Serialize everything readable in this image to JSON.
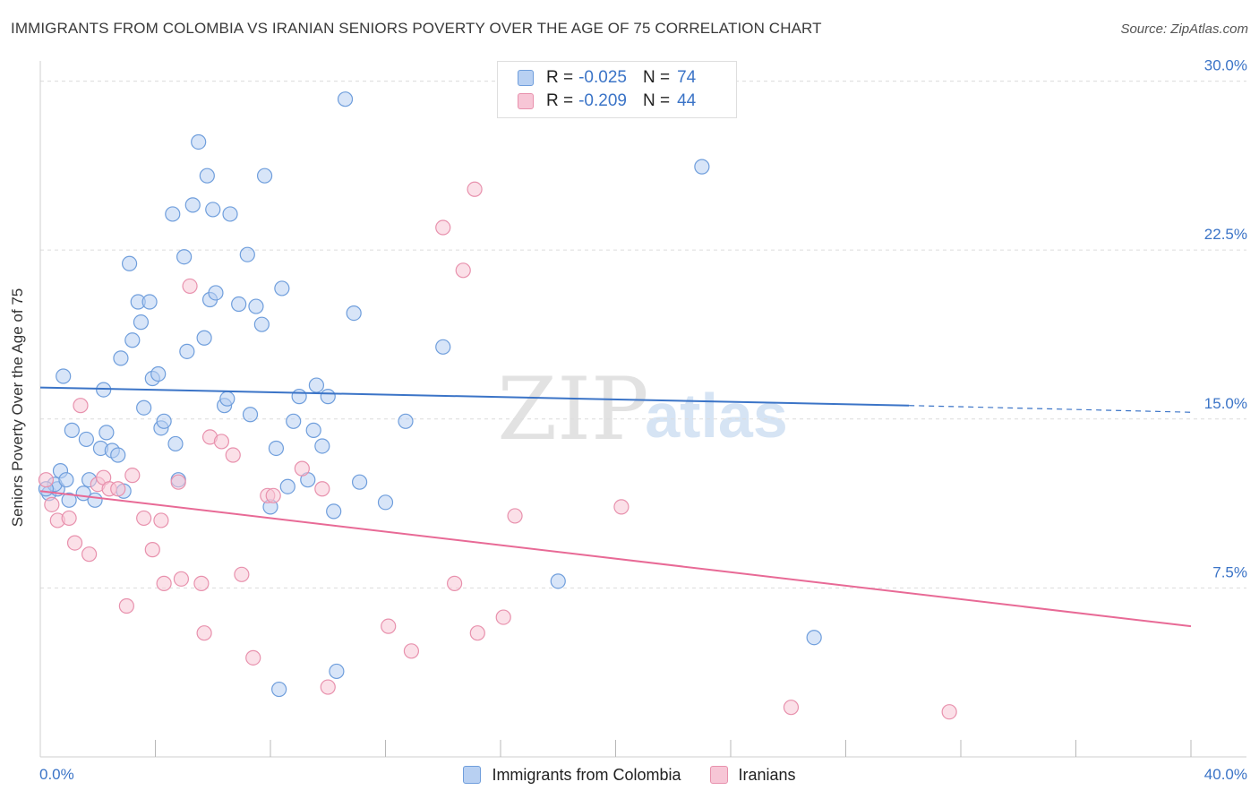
{
  "title": "IMMIGRANTS FROM COLOMBIA VS IRANIAN SENIORS POVERTY OVER THE AGE OF 75 CORRELATION CHART",
  "source": "Source: ZipAtlas.com",
  "watermark": {
    "zip": "ZIP",
    "atlas": "atlas"
  },
  "stats": [
    {
      "r_label": "R =",
      "r_value": "-0.025",
      "n_label": "N =",
      "n_value": "74",
      "swatch_fill": "#b8d0f2",
      "swatch_border": "#6f9edc"
    },
    {
      "r_label": "R =",
      "r_value": "-0.209",
      "n_label": "N =",
      "n_value": "44",
      "swatch_fill": "#f7c6d6",
      "swatch_border": "#e891ad"
    }
  ],
  "legend": [
    {
      "label": "Immigrants from Colombia",
      "fill": "#b8d0f2",
      "border": "#6f9edc"
    },
    {
      "label": "Iranians",
      "fill": "#f7c6d6",
      "border": "#e891ad"
    }
  ],
  "chart_data": {
    "type": "scatter",
    "ylabel": "Seniors Poverty Over the Age of 75",
    "xlabel": "",
    "xlim": [
      0,
      40
    ],
    "ylim": [
      0,
      30.5
    ],
    "x_tick_labels": [
      {
        "value": 0,
        "label": "0.0%"
      },
      {
        "value": 40,
        "label": "40.0%"
      }
    ],
    "y_tick_labels": [
      {
        "value": 7.5,
        "label": "7.5%"
      },
      {
        "value": 15,
        "label": "15.0%"
      },
      {
        "value": 22.5,
        "label": "22.5%"
      },
      {
        "value": 30,
        "label": "30.0%"
      }
    ],
    "x_minor_ticks": [
      4,
      8,
      12,
      16,
      20,
      24,
      28,
      32,
      36,
      40
    ],
    "grid": true,
    "colors": {
      "blue": "#3b74c7",
      "pink": "#e86a96",
      "tick_label": "#3b74c7"
    },
    "series": [
      {
        "name": "Immigrants from Colombia",
        "color": "#6f9edc",
        "fill": "#b8d0f2",
        "trend": {
          "x0": 0,
          "y0": 16.4,
          "x1": 30.2,
          "y1": 15.6,
          "dash_to_x": 40,
          "dash_to_y": 15.3
        },
        "points": [
          [
            0.3,
            11.7
          ],
          [
            0.6,
            11.9
          ],
          [
            0.5,
            12.1
          ],
          [
            0.7,
            12.7
          ],
          [
            0.9,
            12.3
          ],
          [
            1.0,
            11.4
          ],
          [
            0.8,
            16.9
          ],
          [
            1.1,
            14.5
          ],
          [
            1.6,
            14.1
          ],
          [
            1.5,
            11.7
          ],
          [
            1.7,
            12.3
          ],
          [
            1.9,
            11.4
          ],
          [
            2.1,
            13.7
          ],
          [
            2.2,
            16.3
          ],
          [
            2.3,
            14.4
          ],
          [
            2.5,
            13.6
          ],
          [
            2.7,
            13.4
          ],
          [
            2.9,
            11.8
          ],
          [
            2.8,
            17.7
          ],
          [
            3.1,
            21.9
          ],
          [
            3.2,
            18.5
          ],
          [
            3.4,
            20.2
          ],
          [
            3.5,
            19.3
          ],
          [
            3.6,
            15.5
          ],
          [
            3.8,
            20.2
          ],
          [
            3.9,
            16.8
          ],
          [
            4.1,
            17.0
          ],
          [
            4.2,
            14.6
          ],
          [
            4.3,
            14.9
          ],
          [
            4.6,
            24.1
          ],
          [
            4.7,
            13.9
          ],
          [
            4.8,
            12.3
          ],
          [
            5.0,
            22.2
          ],
          [
            5.1,
            18.0
          ],
          [
            5.3,
            24.5
          ],
          [
            5.5,
            27.3
          ],
          [
            5.7,
            18.6
          ],
          [
            5.8,
            25.8
          ],
          [
            5.9,
            20.3
          ],
          [
            6.0,
            24.3
          ],
          [
            6.1,
            20.6
          ],
          [
            6.4,
            15.6
          ],
          [
            6.5,
            15.9
          ],
          [
            6.6,
            24.1
          ],
          [
            6.9,
            20.1
          ],
          [
            7.2,
            22.3
          ],
          [
            7.3,
            15.2
          ],
          [
            7.5,
            20.0
          ],
          [
            7.7,
            19.2
          ],
          [
            7.8,
            25.8
          ],
          [
            8.0,
            11.1
          ],
          [
            8.2,
            13.7
          ],
          [
            8.3,
            3.0
          ],
          [
            8.4,
            20.8
          ],
          [
            8.6,
            12.0
          ],
          [
            8.8,
            14.9
          ],
          [
            9.0,
            16.0
          ],
          [
            9.3,
            12.3
          ],
          [
            9.5,
            14.5
          ],
          [
            9.6,
            16.5
          ],
          [
            9.8,
            13.8
          ],
          [
            10.0,
            16.0
          ],
          [
            10.2,
            10.9
          ],
          [
            10.3,
            3.8
          ],
          [
            10.6,
            29.2
          ],
          [
            10.9,
            19.7
          ],
          [
            11.1,
            12.2
          ],
          [
            12.0,
            11.3
          ],
          [
            12.7,
            14.9
          ],
          [
            14.0,
            18.2
          ],
          [
            18.0,
            7.8
          ],
          [
            23.0,
            26.2
          ],
          [
            26.9,
            5.3
          ],
          [
            0.2,
            11.9
          ]
        ]
      },
      {
        "name": "Iranians",
        "color": "#e891ad",
        "fill": "#f7c6d6",
        "trend": {
          "x0": 0,
          "y0": 11.8,
          "x1": 40,
          "y1": 5.8
        },
        "points": [
          [
            0.2,
            12.3
          ],
          [
            0.4,
            11.2
          ],
          [
            0.6,
            10.5
          ],
          [
            1.0,
            10.6
          ],
          [
            1.2,
            9.5
          ],
          [
            1.4,
            15.6
          ],
          [
            1.7,
            9.0
          ],
          [
            2.0,
            12.1
          ],
          [
            2.2,
            12.4
          ],
          [
            2.4,
            11.9
          ],
          [
            2.7,
            11.9
          ],
          [
            3.0,
            6.7
          ],
          [
            3.2,
            12.5
          ],
          [
            3.6,
            10.6
          ],
          [
            3.9,
            9.2
          ],
          [
            4.3,
            7.7
          ],
          [
            4.2,
            10.5
          ],
          [
            4.8,
            12.2
          ],
          [
            4.9,
            7.9
          ],
          [
            5.2,
            20.9
          ],
          [
            5.6,
            7.7
          ],
          [
            5.7,
            5.5
          ],
          [
            5.9,
            14.2
          ],
          [
            6.3,
            14.0
          ],
          [
            6.7,
            13.4
          ],
          [
            7.0,
            8.1
          ],
          [
            7.4,
            4.4
          ],
          [
            7.9,
            11.6
          ],
          [
            8.1,
            11.6
          ],
          [
            9.1,
            12.8
          ],
          [
            9.8,
            11.9
          ],
          [
            10.0,
            3.1
          ],
          [
            12.1,
            5.8
          ],
          [
            12.9,
            4.7
          ],
          [
            14.0,
            23.5
          ],
          [
            14.4,
            7.7
          ],
          [
            14.7,
            21.6
          ],
          [
            15.1,
            25.2
          ],
          [
            15.2,
            5.5
          ],
          [
            16.1,
            6.2
          ],
          [
            16.5,
            10.7
          ],
          [
            20.2,
            11.1
          ],
          [
            26.1,
            2.2
          ],
          [
            31.6,
            2.0
          ]
        ]
      }
    ]
  }
}
